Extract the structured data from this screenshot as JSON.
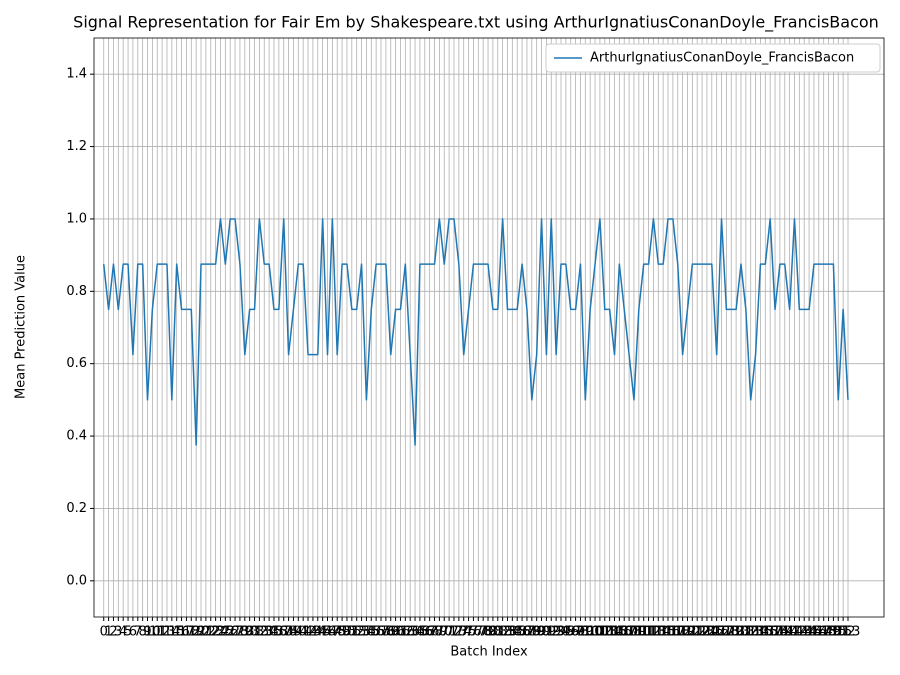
{
  "chart_data": {
    "type": "line",
    "title": "Signal Representation for Fair Em by Shakespeare.txt using ArthurIgnatiusConanDoyle_FrancisBacon",
    "xlabel": "Batch Index",
    "ylabel": "Mean Prediction Value",
    "x": [
      0,
      1,
      2,
      3,
      4,
      5,
      6,
      7,
      8,
      9,
      10,
      11,
      12,
      13,
      14,
      15,
      16,
      17,
      18,
      19,
      20,
      21,
      22,
      23,
      24,
      25,
      26,
      27,
      28,
      29,
      30,
      31,
      32,
      33,
      34,
      35,
      36,
      37,
      38,
      39,
      40,
      41,
      42,
      43,
      44,
      45,
      46,
      47,
      48,
      49,
      50,
      51,
      52,
      53,
      54,
      55,
      56,
      57,
      58,
      59,
      60,
      61,
      62,
      63,
      64,
      65,
      66,
      67,
      68,
      69,
      70,
      71,
      72,
      73,
      74,
      75,
      76,
      77,
      78,
      79,
      80,
      81,
      82,
      83,
      84,
      85,
      86,
      87,
      88,
      89,
      90,
      91,
      92,
      93,
      94,
      95,
      96,
      97,
      98,
      99,
      100,
      101,
      102,
      103,
      104,
      105,
      106,
      107,
      108,
      109,
      110,
      111,
      112,
      113,
      114,
      115,
      116,
      117,
      118,
      119,
      120,
      121,
      122,
      123,
      124,
      125,
      126,
      127,
      128,
      129,
      130,
      131,
      132,
      133,
      134,
      135,
      136,
      137,
      138,
      139,
      140,
      141,
      142,
      143,
      144,
      145,
      146,
      147,
      148,
      149,
      150,
      151,
      152,
      153
    ],
    "series": [
      {
        "name": "ArthurIgnatiusConanDoyle_FrancisBacon",
        "color": "#1f77b4",
        "values": [
          0.875,
          0.75,
          0.875,
          0.75,
          0.875,
          0.875,
          0.625,
          0.875,
          0.875,
          0.5,
          0.75,
          0.875,
          0.875,
          0.875,
          0.5,
          0.875,
          0.75,
          0.75,
          0.75,
          0.375,
          0.875,
          0.875,
          0.875,
          0.875,
          1.0,
          0.875,
          1.0,
          1.0,
          0.875,
          0.625,
          0.75,
          0.75,
          1.0,
          0.875,
          0.875,
          0.75,
          0.75,
          1.0,
          0.625,
          0.75,
          0.875,
          0.875,
          0.625,
          0.625,
          0.625,
          1.0,
          0.625,
          1.0,
          0.625,
          0.875,
          0.875,
          0.75,
          0.75,
          0.875,
          0.5,
          0.75,
          0.875,
          0.875,
          0.875,
          0.625,
          0.75,
          0.75,
          0.875,
          0.625,
          0.375,
          0.875,
          0.875,
          0.875,
          0.875,
          1.0,
          0.875,
          1.0,
          1.0,
          0.875,
          0.625,
          0.75,
          0.875,
          0.875,
          0.875,
          0.875,
          0.75,
          0.75,
          1.0,
          0.75,
          0.75,
          0.75,
          0.875,
          0.75,
          0.5,
          0.625,
          1.0,
          0.625,
          1.0,
          0.625,
          0.875,
          0.875,
          0.75,
          0.75,
          0.875,
          0.5,
          0.75,
          0.875,
          1.0,
          0.75,
          0.75,
          0.625,
          0.875,
          0.75,
          0.625,
          0.5,
          0.75,
          0.875,
          0.875,
          1.0,
          0.875,
          0.875,
          1.0,
          1.0,
          0.875,
          0.625,
          0.75,
          0.875,
          0.875,
          0.875,
          0.875,
          0.875,
          0.625,
          1.0,
          0.75,
          0.75,
          0.75,
          0.875,
          0.75,
          0.5,
          0.625,
          0.875,
          0.875,
          1.0,
          0.75,
          0.875,
          0.875,
          0.75,
          1.0,
          0.75,
          0.75,
          0.75,
          0.875,
          0.875,
          0.875,
          0.875,
          0.875,
          0.5,
          0.75,
          0.5
        ]
      }
    ],
    "xlim": [
      -2,
      160.4
    ],
    "xticks": [
      0,
      1,
      2,
      3,
      4,
      5,
      6,
      7,
      8,
      9,
      10,
      11,
      12,
      13,
      14,
      15,
      16,
      17,
      18,
      19,
      20,
      21,
      22,
      23,
      24,
      25,
      26,
      27,
      28,
      29,
      30,
      31,
      32,
      33,
      34,
      35,
      36,
      37,
      38,
      39,
      40,
      41,
      42,
      43,
      44,
      45,
      46,
      47,
      48,
      49,
      50,
      51,
      52,
      53,
      54,
      55,
      56,
      57,
      58,
      59,
      60,
      61,
      62,
      63,
      64,
      65,
      66,
      67,
      68,
      69,
      70,
      71,
      72,
      73,
      74,
      75,
      76,
      77,
      78,
      79,
      80,
      81,
      82,
      83,
      84,
      85,
      86,
      87,
      88,
      89,
      90,
      91,
      92,
      93,
      94,
      95,
      96,
      97,
      98,
      99,
      100,
      101,
      102,
      103,
      104,
      105,
      106,
      107,
      108,
      109,
      110,
      111,
      112,
      113,
      114,
      115,
      116,
      117,
      118,
      119,
      120,
      121,
      122,
      123,
      124,
      125,
      126,
      127,
      128,
      129,
      130,
      131,
      132,
      133,
      134,
      135,
      136,
      137,
      138,
      139,
      140,
      141,
      142,
      143,
      144,
      145,
      146,
      147,
      148,
      149,
      150,
      151,
      152,
      153
    ],
    "ylim": [
      -0.1,
      1.5
    ],
    "yticks": [
      {
        "value": 0,
        "label": "0.0"
      },
      0.2,
      0.4,
      0.6,
      0.8,
      {
        "value": 1,
        "label": "1.0"
      },
      1.2,
      1.4
    ],
    "grid": true,
    "legend": "upper right"
  }
}
